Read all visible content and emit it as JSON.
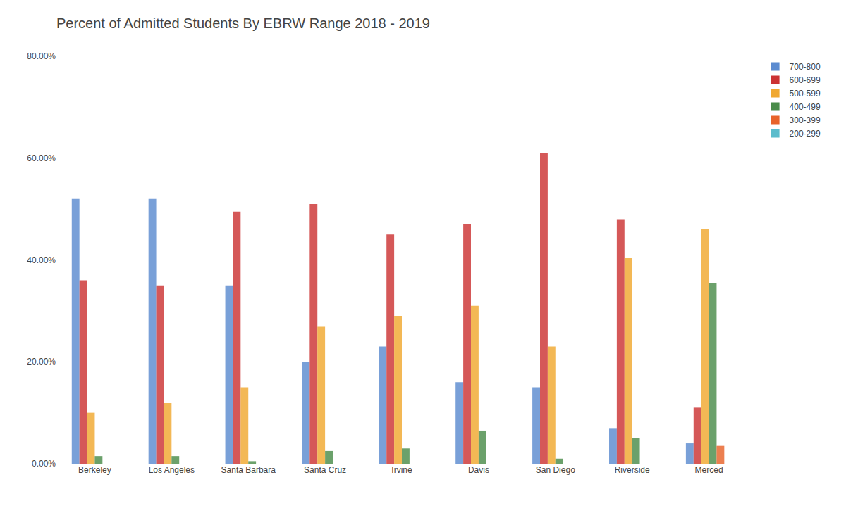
{
  "chart_data": {
    "type": "bar",
    "title": "Percent of Admitted Students By EBRW Range 2018 - 2019",
    "categories": [
      "Berkeley",
      "Los Angeles",
      "Santa Barbara",
      "Santa Cruz",
      "Irvine",
      "Davis",
      "San Diego",
      "Riverside",
      "Merced"
    ],
    "series": [
      {
        "name": "700-800",
        "color": "#5B8BD0",
        "values": [
          52.0,
          52.0,
          35.0,
          20.0,
          23.0,
          16.0,
          15.0,
          7.0,
          4.0
        ]
      },
      {
        "name": "600-699",
        "color": "#CC3333",
        "values": [
          36.0,
          35.0,
          49.5,
          51.0,
          45.0,
          47.0,
          61.0,
          48.0,
          11.0
        ]
      },
      {
        "name": "500-599",
        "color": "#F0A830",
        "values": [
          10.0,
          12.0,
          15.0,
          27.0,
          29.0,
          31.0,
          23.0,
          40.5,
          46.0
        ]
      },
      {
        "name": "400-499",
        "color": "#4A8C4A",
        "values": [
          1.5,
          1.5,
          0.5,
          2.5,
          3.0,
          6.5,
          1.0,
          5.0,
          35.5
        ]
      },
      {
        "name": "300-399",
        "color": "#E8632A",
        "values": [
          0.0,
          0.0,
          0.0,
          0.0,
          0.0,
          0.0,
          0.0,
          0.0,
          3.5
        ]
      },
      {
        "name": "200-299",
        "color": "#5BBCCC",
        "values": [
          0.0,
          0.0,
          0.0,
          0.0,
          0.0,
          0.0,
          0.0,
          0.0,
          0.0
        ]
      }
    ],
    "ylim": [
      0,
      80
    ],
    "yticks": [
      {
        "value": 0,
        "label": "0.00%"
      },
      {
        "value": 20,
        "label": "20.00%"
      },
      {
        "value": 40,
        "label": "40.00%"
      },
      {
        "value": 60,
        "label": "60.00%"
      },
      {
        "value": 80,
        "label": "80.00%"
      }
    ],
    "grid": true,
    "legend": "right"
  }
}
